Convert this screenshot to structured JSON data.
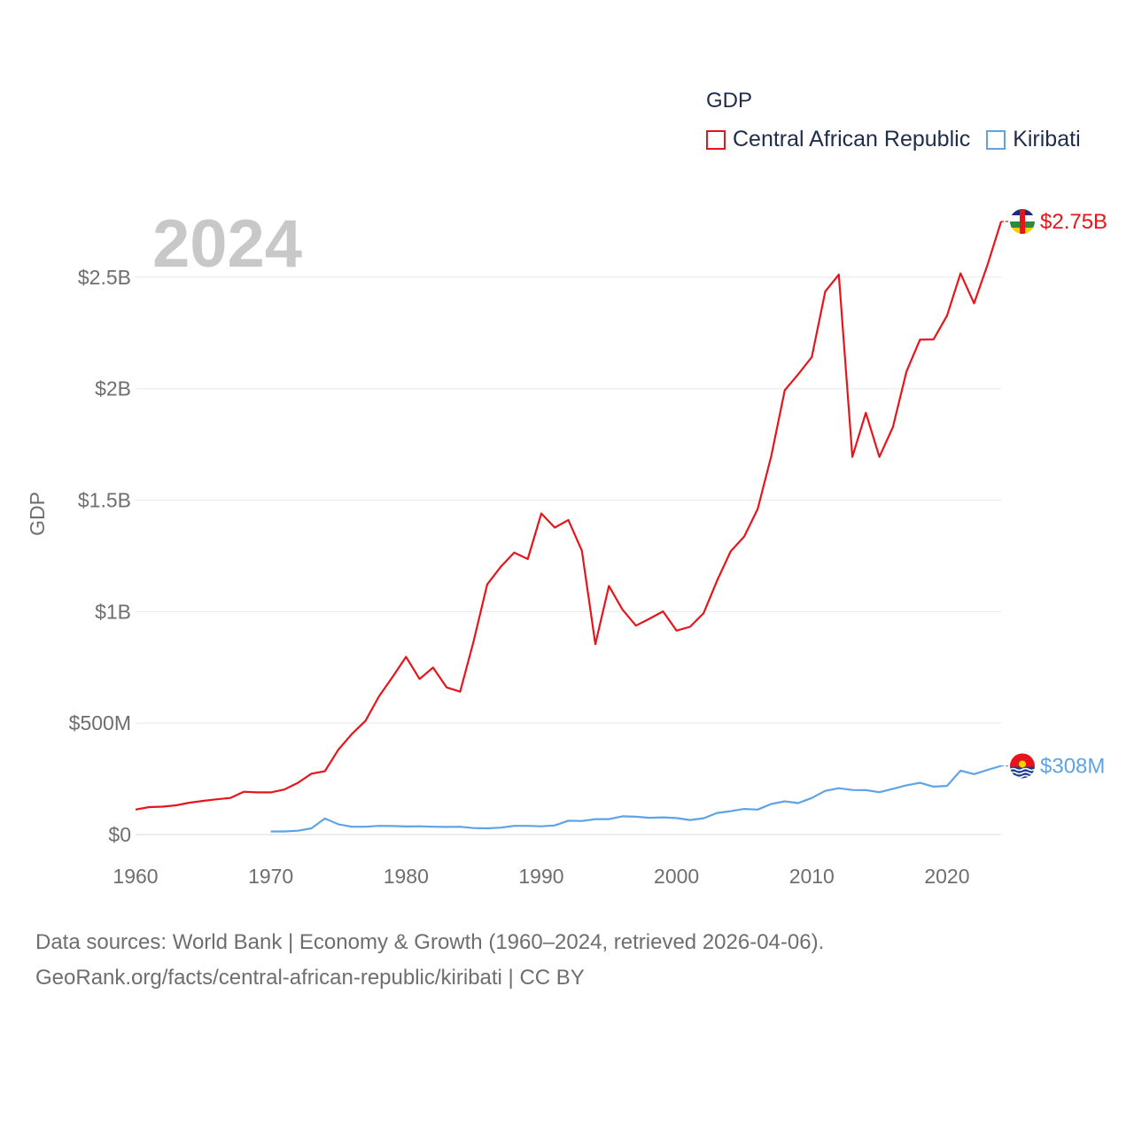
{
  "chart_data": {
    "type": "line",
    "title": "",
    "xlabel": "",
    "ylabel": "GDP",
    "legend_title": "GDP",
    "xlim": [
      1960,
      2024
    ],
    "ylim": [
      0,
      2750000000
    ],
    "y_ticks": [
      {
        "value": 0,
        "label": "$0"
      },
      {
        "value": 500000000,
        "label": "$500M"
      },
      {
        "value": 1000000000,
        "label": "$1B"
      },
      {
        "value": 1500000000,
        "label": "$1.5B"
      },
      {
        "value": 2000000000,
        "label": "$2B"
      },
      {
        "value": 2500000000,
        "label": "$2.5B"
      }
    ],
    "x_ticks": [
      1960,
      1970,
      1980,
      1990,
      2000,
      2010,
      2020
    ],
    "year_watermark": "2024",
    "series": [
      {
        "name": "Central African Republic",
        "color": "#e8141b",
        "end_label": "$2.75B",
        "flag_icon": "central-african-republic-flag-icon",
        "x": [
          1960,
          1961,
          1962,
          1963,
          1964,
          1965,
          1966,
          1967,
          1968,
          1969,
          1970,
          1971,
          1972,
          1973,
          1974,
          1975,
          1976,
          1977,
          1978,
          1979,
          1980,
          1981,
          1982,
          1983,
          1984,
          1985,
          1986,
          1987,
          1988,
          1989,
          1990,
          1991,
          1992,
          1993,
          1994,
          1995,
          1996,
          1997,
          1998,
          1999,
          2000,
          2001,
          2002,
          2003,
          2004,
          2005,
          2006,
          2007,
          2008,
          2009,
          2010,
          2011,
          2012,
          2013,
          2014,
          2015,
          2016,
          2017,
          2018,
          2019,
          2020,
          2021,
          2022,
          2023,
          2024
        ],
        "values": [
          112000000,
          123000000,
          125000000,
          131000000,
          143000000,
          151000000,
          158000000,
          164000000,
          192000000,
          189000000,
          189000000,
          202000000,
          232000000,
          273000000,
          284000000,
          381000000,
          452000000,
          510000000,
          620000000,
          706000000,
          797000000,
          698000000,
          749000000,
          660000000,
          641000000,
          867000000,
          1122000000,
          1201000000,
          1265000000,
          1236000000,
          1440000000,
          1377000000,
          1411000000,
          1273000000,
          854000000,
          1115000000,
          1009000000,
          937000000,
          968000000,
          1001000000,
          915000000,
          932000000,
          993000000,
          1139000000,
          1270000000,
          1337000000,
          1460000000,
          1697000000,
          1993000000,
          2065000000,
          2142000000,
          2436000000,
          2512000000,
          1694000000,
          1892000000,
          1694000000,
          1828000000,
          2076000000,
          2220000000,
          2221000000,
          2327000000,
          2517000000,
          2383000000,
          2556000000,
          2750000000
        ]
      },
      {
        "name": "Kiribati",
        "color": "#5ea3e6",
        "end_label": "$308M",
        "flag_icon": "kiribati-flag-icon",
        "x": [
          1970,
          1971,
          1972,
          1973,
          1974,
          1975,
          1976,
          1977,
          1978,
          1979,
          1980,
          1981,
          1982,
          1983,
          1984,
          1985,
          1986,
          1987,
          1988,
          1989,
          1990,
          1991,
          1992,
          1993,
          1994,
          1995,
          1996,
          1997,
          1998,
          1999,
          2000,
          2001,
          2002,
          2003,
          2004,
          2005,
          2006,
          2007,
          2008,
          2009,
          2010,
          2011,
          2012,
          2013,
          2014,
          2015,
          2016,
          2017,
          2018,
          2019,
          2020,
          2021,
          2022,
          2023,
          2024
        ],
        "values": [
          14000000,
          14000000,
          17000000,
          28000000,
          72000000,
          46000000,
          35000000,
          35000000,
          39000000,
          38000000,
          36000000,
          37000000,
          35000000,
          34000000,
          35000000,
          29000000,
          28000000,
          31000000,
          39000000,
          39000000,
          37000000,
          41000000,
          62000000,
          61000000,
          69000000,
          69000000,
          82000000,
          80000000,
          75000000,
          77000000,
          74000000,
          65000000,
          73000000,
          97000000,
          105000000,
          115000000,
          112000000,
          137000000,
          149000000,
          141000000,
          164000000,
          196000000,
          208000000,
          200000000,
          199000000,
          190000000,
          205000000,
          221000000,
          232000000,
          215000000,
          218000000,
          287000000,
          271000000,
          290000000,
          308000000
        ]
      }
    ]
  },
  "source_line_1": "Data sources: World Bank | Economy & Growth (1960–2024, retrieved 2026-04-06).",
  "source_line_2": "GeoRank.org/facts/central-african-republic/kiribati | CC BY"
}
